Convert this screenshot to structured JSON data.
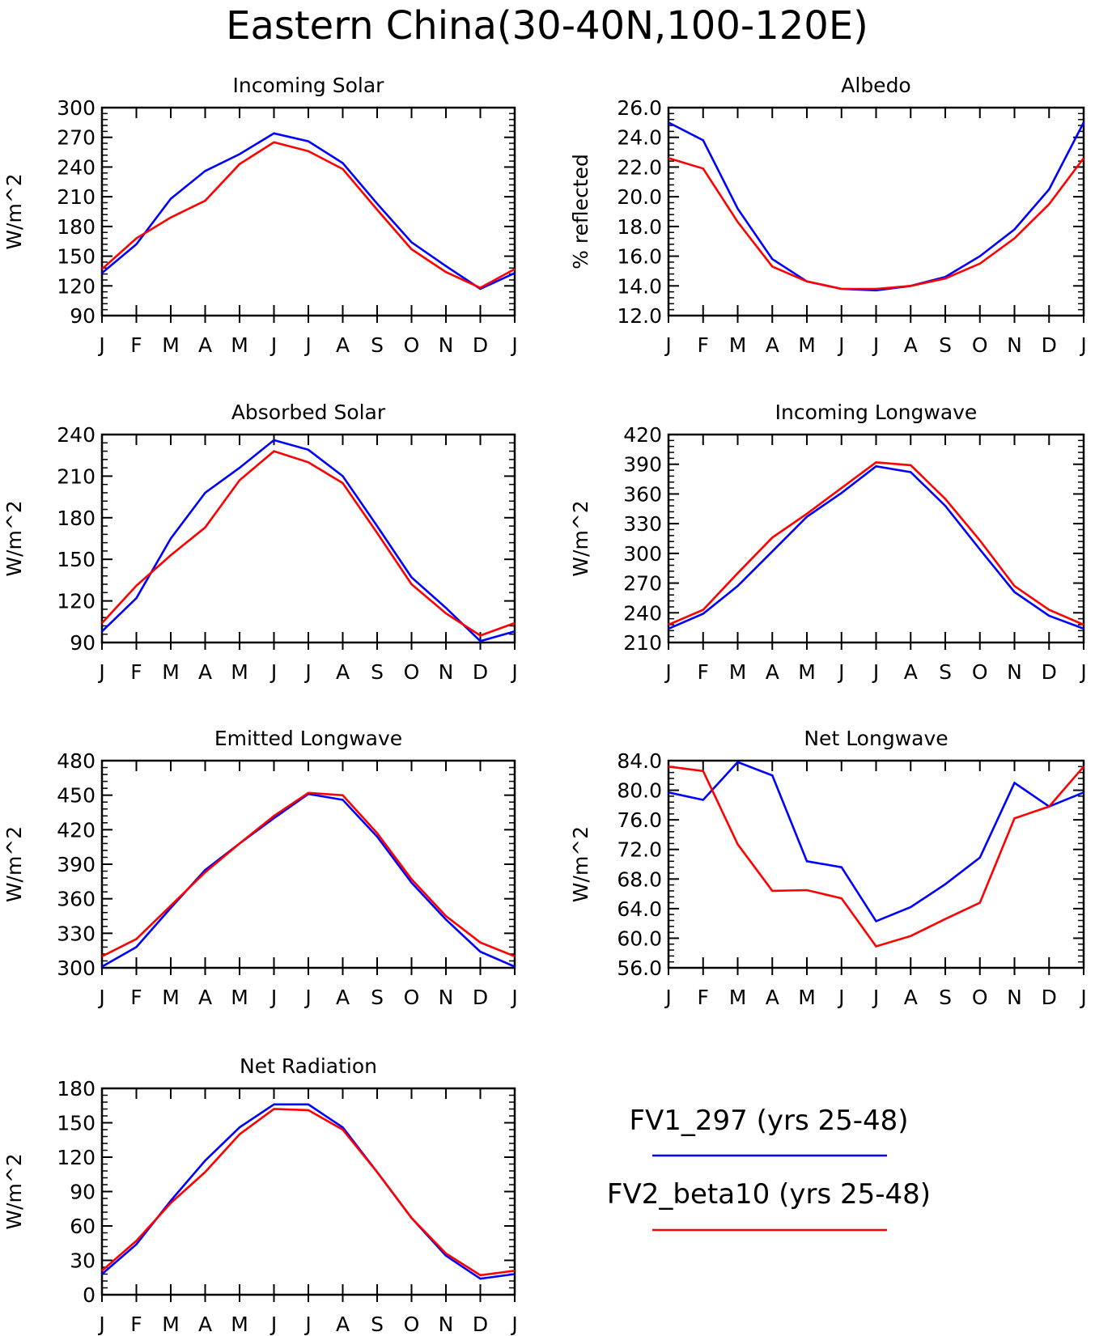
{
  "title": "Eastern China(30-40N,100-120E)",
  "months": [
    "J",
    "F",
    "M",
    "A",
    "M",
    "J",
    "J",
    "A",
    "S",
    "O",
    "N",
    "D",
    "J"
  ],
  "colors": {
    "FV1_297": "#0000ff",
    "FV2_beta10": "#ff0000"
  },
  "legend": [
    {
      "label": "FV1_297 (yrs 25-48)",
      "color": "#0000ff"
    },
    {
      "label": "FV2_beta10 (yrs 25-48)",
      "color": "#ff0000"
    }
  ],
  "chart_data": [
    {
      "type": "line",
      "title": "Incoming Solar",
      "ylabel": "W/m^2",
      "ylim": [
        90,
        300
      ],
      "yticks": [
        "90",
        "120",
        "150",
        "180",
        "210",
        "240",
        "270",
        "300"
      ],
      "categories": [
        "J",
        "F",
        "M",
        "A",
        "M",
        "J",
        "J",
        "A",
        "S",
        "O",
        "N",
        "D",
        "J"
      ],
      "series": [
        {
          "name": "FV1_297 (yrs 25-48)",
          "color": "#0000ff",
          "values": [
            133,
            162,
            208,
            236,
            253,
            274,
            266,
            244,
            203,
            164,
            140,
            117,
            133
          ]
        },
        {
          "name": "FV2_beta10 (yrs 25-48)",
          "color": "#ff0000",
          "values": [
            137,
            168,
            189,
            206,
            243,
            265,
            256,
            238,
            197,
            157,
            134,
            118,
            137
          ]
        }
      ]
    },
    {
      "type": "line",
      "title": "Albedo",
      "ylabel": "% reflected",
      "ylim": [
        12.0,
        26.0
      ],
      "yticks": [
        "12.0",
        "14.0",
        "16.0",
        "18.0",
        "20.0",
        "22.0",
        "24.0",
        "26.0"
      ],
      "categories": [
        "J",
        "F",
        "M",
        "A",
        "M",
        "J",
        "J",
        "A",
        "S",
        "O",
        "N",
        "D",
        "J"
      ],
      "series": [
        {
          "name": "FV1_297 (yrs 25-48)",
          "color": "#0000ff",
          "values": [
            25.0,
            23.8,
            19.2,
            15.8,
            14.3,
            13.8,
            13.7,
            14.0,
            14.6,
            16.0,
            17.8,
            20.5,
            25.0
          ]
        },
        {
          "name": "FV2_beta10 (yrs 25-48)",
          "color": "#ff0000",
          "values": [
            22.6,
            21.9,
            18.3,
            15.3,
            14.3,
            13.8,
            13.8,
            14.0,
            14.5,
            15.5,
            17.2,
            19.5,
            22.6
          ]
        }
      ]
    },
    {
      "type": "line",
      "title": "Absorbed Solar",
      "ylabel": "W/m^2",
      "ylim": [
        90,
        240
      ],
      "yticks": [
        "90",
        "120",
        "150",
        "180",
        "210",
        "240"
      ],
      "categories": [
        "J",
        "F",
        "M",
        "A",
        "M",
        "J",
        "J",
        "A",
        "S",
        "O",
        "N",
        "D",
        "J"
      ],
      "series": [
        {
          "name": "FV1_297 (yrs 25-48)",
          "color": "#0000ff",
          "values": [
            98,
            122,
            165,
            198,
            216,
            236,
            229,
            210,
            174,
            137,
            115,
            91,
            98
          ]
        },
        {
          "name": "FV2_beta10 (yrs 25-48)",
          "color": "#ff0000",
          "values": [
            104,
            131,
            153,
            173,
            207,
            228,
            220,
            205,
            169,
            132,
            111,
            95,
            104
          ]
        }
      ]
    },
    {
      "type": "line",
      "title": "Incoming Longwave",
      "ylabel": "W/m^2",
      "ylim": [
        210,
        420
      ],
      "yticks": [
        "210",
        "240",
        "270",
        "300",
        "330",
        "360",
        "390",
        "420"
      ],
      "categories": [
        "J",
        "F",
        "M",
        "A",
        "M",
        "J",
        "J",
        "A",
        "S",
        "O",
        "N",
        "D",
        "J"
      ],
      "series": [
        {
          "name": "FV1_297 (yrs 25-48)",
          "color": "#0000ff",
          "values": [
            224,
            239,
            267,
            302,
            337,
            361,
            388,
            382,
            348,
            304,
            261,
            237,
            224
          ]
        },
        {
          "name": "FV2_beta10 (yrs 25-48)",
          "color": "#ff0000",
          "values": [
            228,
            243,
            280,
            316,
            340,
            366,
            392,
            389,
            355,
            313,
            267,
            243,
            228
          ]
        }
      ]
    },
    {
      "type": "line",
      "title": "Emitted Longwave",
      "ylabel": "W/m^2",
      "ylim": [
        300,
        480
      ],
      "yticks": [
        "300",
        "330",
        "360",
        "390",
        "420",
        "450",
        "480"
      ],
      "categories": [
        "J",
        "F",
        "M",
        "A",
        "M",
        "J",
        "J",
        "A",
        "S",
        "O",
        "N",
        "D",
        "J"
      ],
      "series": [
        {
          "name": "FV1_297 (yrs 25-48)",
          "color": "#0000ff",
          "values": [
            301,
            318,
            352,
            385,
            408,
            430,
            451,
            446,
            414,
            374,
            342,
            314,
            301
          ]
        },
        {
          "name": "FV2_beta10 (yrs 25-48)",
          "color": "#ff0000",
          "values": [
            310,
            325,
            354,
            383,
            408,
            432,
            452,
            450,
            417,
            377,
            345,
            322,
            310
          ]
        }
      ]
    },
    {
      "type": "line",
      "title": "Net Longwave",
      "ylabel": "W/m^2",
      "ylim": [
        56.0,
        84.0
      ],
      "yticks": [
        "56.0",
        "60.0",
        "64.0",
        "68.0",
        "72.0",
        "76.0",
        "80.0",
        "84.0"
      ],
      "categories": [
        "J",
        "F",
        "M",
        "A",
        "M",
        "J",
        "J",
        "A",
        "S",
        "O",
        "N",
        "D",
        "J"
      ],
      "series": [
        {
          "name": "FV1_297 (yrs 25-48)",
          "color": "#0000ff",
          "values": [
            79.7,
            78.7,
            83.8,
            82.0,
            70.4,
            69.6,
            62.3,
            64.2,
            67.3,
            70.9,
            81.0,
            77.8,
            79.7
          ]
        },
        {
          "name": "FV2_beta10 (yrs 25-48)",
          "color": "#ff0000",
          "values": [
            83.2,
            82.6,
            72.7,
            66.4,
            66.5,
            65.4,
            58.9,
            60.3,
            62.6,
            64.8,
            76.2,
            77.8,
            83.2
          ]
        }
      ]
    },
    {
      "type": "line",
      "title": "Net Radiation",
      "ylabel": "W/m^2",
      "ylim": [
        0,
        180
      ],
      "yticks": [
        "0",
        "30",
        "60",
        "90",
        "120",
        "150",
        "180"
      ],
      "categories": [
        "J",
        "F",
        "M",
        "A",
        "M",
        "J",
        "J",
        "A",
        "S",
        "O",
        "N",
        "D",
        "J"
      ],
      "series": [
        {
          "name": "FV1_297 (yrs 25-48)",
          "color": "#0000ff",
          "values": [
            18,
            44,
            82,
            117,
            146,
            166,
            166,
            146,
            107,
            67,
            34,
            14,
            18
          ]
        },
        {
          "name": "FV2_beta10 (yrs 25-48)",
          "color": "#ff0000",
          "values": [
            21,
            47,
            80,
            107,
            140,
            162,
            161,
            144,
            107,
            67,
            36,
            17,
            21
          ]
        }
      ]
    }
  ]
}
